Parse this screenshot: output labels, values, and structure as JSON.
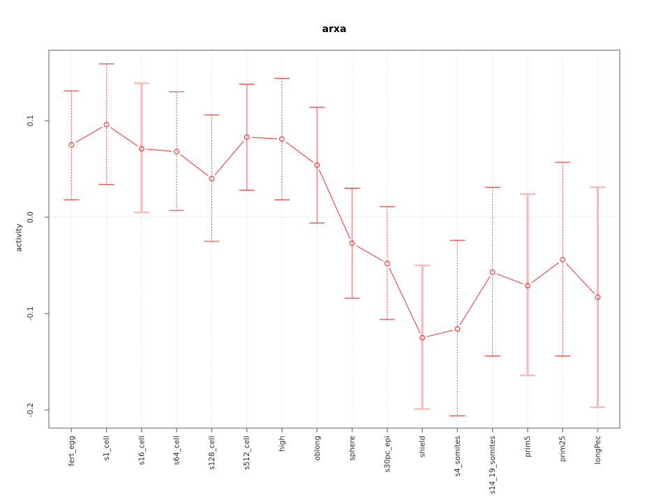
{
  "figure": {
    "title": "arxa",
    "background": "#ffffff"
  },
  "chart_data": {
    "type": "line",
    "title": "arxa",
    "xlabel": "",
    "ylabel": "activity",
    "legend": "none",
    "grid": "vertical dotted gridline at every category; horizontal dotted line at y=0 only",
    "categories": [
      "fert_egg",
      "s1_cell",
      "s16_cell",
      "s64_cell",
      "s128_cell",
      "s512_cell",
      "high",
      "oblong",
      "sphere",
      "s30pc_epi",
      "shield",
      "s4_somites",
      "s14_19_somites",
      "prim5",
      "prim25",
      "longPec"
    ],
    "series": [
      {
        "name": "activity",
        "values": [
          0.075,
          0.096,
          0.071,
          0.068,
          0.04,
          0.083,
          0.081,
          0.054,
          -0.027,
          -0.048,
          -0.125,
          -0.116,
          -0.057,
          -0.071,
          -0.044,
          -0.083
        ],
        "error_upper": [
          0.131,
          0.159,
          0.139,
          0.13,
          0.106,
          0.138,
          0.144,
          0.114,
          0.03,
          0.011,
          -0.05,
          -0.024,
          0.031,
          0.024,
          0.057,
          0.031
        ],
        "error_lower": [
          0.018,
          0.034,
          0.005,
          0.007,
          -0.025,
          0.028,
          0.018,
          -0.006,
          -0.084,
          -0.106,
          -0.199,
          -0.206,
          -0.144,
          -0.164,
          -0.144,
          -0.197
        ],
        "error_bar_styles": [
          "dashed",
          "dashed",
          "thick",
          "dashed",
          "dashed",
          "solid",
          "dashed",
          "solid",
          "solid",
          "dashed",
          "thick",
          "dashed",
          "dashed",
          "thick",
          "dashed",
          "thick"
        ]
      }
    ],
    "yticks": [
      0.1,
      0.0,
      -0.1,
      -0.2
    ],
    "ytick_labels": [
      "0.1",
      "0.0",
      "-0.1",
      "-0.2"
    ],
    "ylim": [
      -0.215,
      0.175
    ],
    "marker": "open-circle",
    "colors": {
      "line": "#f84c4c",
      "point": "#ef4444",
      "bar_dashed": "#ef4848",
      "bar_solid": "#ff8f8f",
      "bar_thick": "#ffb6b6",
      "grid": "#dcdcdc",
      "box": "#999999",
      "tick": "#808080",
      "tick_label": "#2b2b2b",
      "title": "#000000"
    }
  }
}
